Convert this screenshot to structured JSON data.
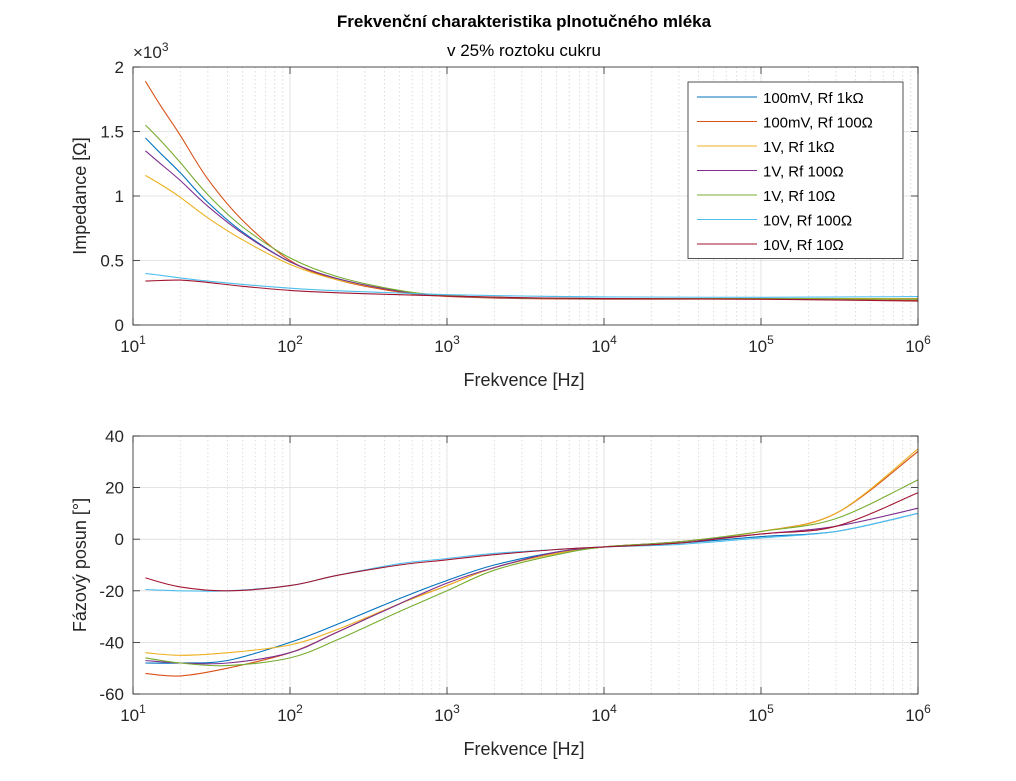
{
  "chart_data": [
    {
      "type": "line",
      "title": "Frekvenční charakteristika plnotučného mléka",
      "subtitle": "v 25% roztoku cukru",
      "xlabel": "Frekvence [Hz]",
      "ylabel": "Impedance [Ω]",
      "xscale": "log",
      "xlim": [
        10,
        1000000
      ],
      "ylim": [
        0,
        2000
      ],
      "y_multiplier_label": "×10",
      "y_multiplier_exponent": "3",
      "xticks": [
        {
          "value": 10,
          "base": "10",
          "exp": "1"
        },
        {
          "value": 100,
          "base": "10",
          "exp": "2"
        },
        {
          "value": 1000,
          "base": "10",
          "exp": "3"
        },
        {
          "value": 10000,
          "base": "10",
          "exp": "4"
        },
        {
          "value": 100000,
          "base": "10",
          "exp": "5"
        },
        {
          "value": 1000000,
          "base": "10",
          "exp": "6"
        }
      ],
      "yticks": [
        {
          "value": 0,
          "label": "0"
        },
        {
          "value": 500,
          "label": "0.5"
        },
        {
          "value": 1000,
          "label": "1"
        },
        {
          "value": 1500,
          "label": "1.5"
        },
        {
          "value": 2000,
          "label": "2"
        }
      ],
      "grid": true,
      "legend_position": "top-right",
      "x": [
        12,
        15,
        20,
        30,
        50,
        100,
        200,
        500,
        1000,
        3000,
        10000,
        100000,
        1000000
      ],
      "series": [
        {
          "name": "100mV, Rf 1kΩ",
          "color": "#0072BD",
          "values": [
            1450,
            1330,
            1180,
            950,
            720,
            490,
            360,
            260,
            225,
            210,
            205,
            205,
            205
          ]
        },
        {
          "name": "100mV, Rf 100Ω",
          "color": "#D95319",
          "values": [
            1890,
            1700,
            1470,
            1130,
            810,
            500,
            350,
            255,
            222,
            205,
            200,
            200,
            190
          ]
        },
        {
          "name": "1V, Rf 1kΩ",
          "color": "#EDB120",
          "values": [
            1160,
            1090,
            990,
            830,
            660,
            470,
            350,
            265,
            228,
            210,
            205,
            205,
            205
          ]
        },
        {
          "name": "1V, Rf 100Ω",
          "color": "#7E2F8E",
          "values": [
            1350,
            1250,
            1120,
            920,
            710,
            490,
            360,
            262,
            225,
            208,
            203,
            203,
            200
          ]
        },
        {
          "name": "1V, Rf 10Ω",
          "color": "#77AC30",
          "values": [
            1550,
            1430,
            1260,
            1010,
            760,
            520,
            375,
            268,
            228,
            210,
            205,
            205,
            200
          ]
        },
        {
          "name": "10V, Rf 100Ω",
          "color": "#4DBEEE",
          "values": [
            400,
            385,
            365,
            340,
            315,
            285,
            265,
            248,
            235,
            225,
            218,
            215,
            220
          ]
        },
        {
          "name": "10V, Rf 10Ω",
          "color": "#A2142F",
          "values": [
            340,
            345,
            348,
            330,
            300,
            268,
            250,
            235,
            225,
            212,
            205,
            200,
            185
          ]
        }
      ]
    },
    {
      "type": "line",
      "xlabel": "Frekvence [Hz]",
      "ylabel": "Fázový posun [°]",
      "xscale": "log",
      "xlim": [
        10,
        1000000
      ],
      "ylim": [
        -60,
        40
      ],
      "xticks": [
        {
          "value": 10,
          "base": "10",
          "exp": "1"
        },
        {
          "value": 100,
          "base": "10",
          "exp": "2"
        },
        {
          "value": 1000,
          "base": "10",
          "exp": "3"
        },
        {
          "value": 10000,
          "base": "10",
          "exp": "4"
        },
        {
          "value": 100000,
          "base": "10",
          "exp": "5"
        },
        {
          "value": 1000000,
          "base": "10",
          "exp": "6"
        }
      ],
      "yticks": [
        {
          "value": -60,
          "label": "-60"
        },
        {
          "value": -40,
          "label": "-40"
        },
        {
          "value": -20,
          "label": "-20"
        },
        {
          "value": 0,
          "label": "0"
        },
        {
          "value": 20,
          "label": "20"
        },
        {
          "value": 40,
          "label": "40"
        }
      ],
      "grid": true,
      "x": [
        12,
        20,
        40,
        100,
        200,
        500,
        1000,
        2000,
        5000,
        10000,
        30000,
        100000,
        300000,
        1000000
      ],
      "series": [
        {
          "name": "100mV, Rf 1kΩ",
          "color": "#0072BD",
          "values": [
            -48,
            -48,
            -47,
            -40,
            -33,
            -23,
            -16,
            -10,
            -5,
            -3,
            -1.5,
            1,
            3,
            10
          ]
        },
        {
          "name": "100mV, Rf 100Ω",
          "color": "#D95319",
          "values": [
            -52,
            -53,
            -50,
            -44,
            -36,
            -25,
            -18,
            -11,
            -5.5,
            -3,
            -1,
            3,
            10,
            34
          ]
        },
        {
          "name": "1V, Rf 1kΩ",
          "color": "#EDB120",
          "values": [
            -44,
            -45,
            -44,
            -41,
            -35,
            -25,
            -18,
            -11,
            -5.5,
            -3,
            -1,
            3,
            10,
            35
          ]
        },
        {
          "name": "1V, Rf 100Ω",
          "color": "#7E2F8E",
          "values": [
            -47,
            -48,
            -48,
            -44,
            -36,
            -25,
            -17,
            -11,
            -5,
            -3,
            -1,
            2,
            5,
            12
          ]
        },
        {
          "name": "1V, Rf 10Ω",
          "color": "#77AC30",
          "values": [
            -46,
            -48,
            -49,
            -46,
            -39,
            -28,
            -20,
            -12,
            -6,
            -3,
            -1,
            3,
            8,
            23
          ]
        },
        {
          "name": "10V, Rf 100Ω",
          "color": "#4DBEEE",
          "values": [
            -19.5,
            -20,
            -20,
            -18,
            -14,
            -9.5,
            -7.5,
            -5.5,
            -4,
            -3,
            -2,
            0.5,
            3,
            10
          ]
        },
        {
          "name": "10V, Rf 10Ω",
          "color": "#A2142F",
          "values": [
            -15,
            -18.5,
            -20,
            -18,
            -14,
            -10,
            -8,
            -6,
            -4,
            -3,
            -1.5,
            2,
            5,
            18
          ]
        }
      ]
    }
  ]
}
